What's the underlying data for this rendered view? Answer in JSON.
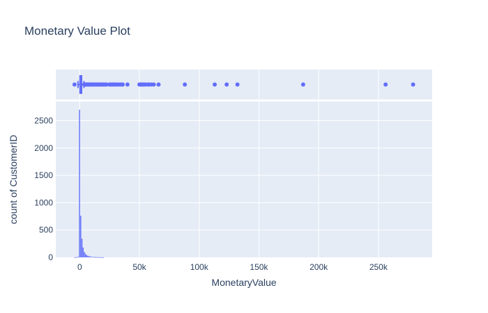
{
  "chart_data": {
    "type": "histogram",
    "title": "Monetary Value Plot",
    "xlabel": "MonetaryValue",
    "ylabel": "count of CustomerID",
    "xlim": [
      -20000,
      295000
    ],
    "ylim": [
      0,
      2850
    ],
    "x_ticks": [
      0,
      50000,
      100000,
      150000,
      200000,
      250000
    ],
    "x_tick_labels": [
      "0",
      "50k",
      "100k",
      "150k",
      "200k",
      "250k"
    ],
    "y_ticks": [
      0,
      500,
      1000,
      1500,
      2000,
      2500
    ],
    "y_tick_labels": [
      "0",
      "500",
      "1000",
      "1500",
      "2000",
      "2500"
    ],
    "grid": true,
    "color": "#636efa",
    "background": "#e5ecf6",
    "histogram": {
      "bins": [
        {
          "x0": -4500,
          "x1": -3500,
          "count": 1
        },
        {
          "x0": -3500,
          "x1": -2500,
          "count": 2
        },
        {
          "x0": -2500,
          "x1": -1500,
          "count": 4
        },
        {
          "x0": -1500,
          "x1": -500,
          "count": 12
        },
        {
          "x0": -500,
          "x1": 500,
          "count": 2700
        },
        {
          "x0": 500,
          "x1": 1500,
          "count": 760
        },
        {
          "x0": 1500,
          "x1": 2500,
          "count": 340
        },
        {
          "x0": 2500,
          "x1": 3500,
          "count": 180
        },
        {
          "x0": 3500,
          "x1": 4500,
          "count": 100
        },
        {
          "x0": 4500,
          "x1": 5500,
          "count": 65
        },
        {
          "x0": 5500,
          "x1": 6500,
          "count": 40
        },
        {
          "x0": 6500,
          "x1": 7500,
          "count": 28
        },
        {
          "x0": 7500,
          "x1": 8500,
          "count": 20
        },
        {
          "x0": 8500,
          "x1": 9500,
          "count": 15
        },
        {
          "x0": 9500,
          "x1": 10500,
          "count": 11
        },
        {
          "x0": 10500,
          "x1": 11500,
          "count": 9
        },
        {
          "x0": 11500,
          "x1": 12500,
          "count": 7
        },
        {
          "x0": 12500,
          "x1": 13500,
          "count": 6
        },
        {
          "x0": 13500,
          "x1": 14500,
          "count": 5
        },
        {
          "x0": 14500,
          "x1": 15500,
          "count": 4
        },
        {
          "x0": 15500,
          "x1": 16500,
          "count": 3
        },
        {
          "x0": 16500,
          "x1": 17500,
          "count": 3
        },
        {
          "x0": 17500,
          "x1": 18500,
          "count": 2
        },
        {
          "x0": 18500,
          "x1": 19500,
          "count": 2
        },
        {
          "x0": 19500,
          "x1": 20500,
          "count": 2
        }
      ]
    },
    "marginal_box": {
      "q1": 300,
      "median": 650,
      "q3": 1600,
      "lower_fence": -1400,
      "upper_fence": 3600,
      "outliers": [
        -4300,
        3800,
        4200,
        4600,
        5000,
        5500,
        6000,
        6500,
        7000,
        7500,
        8000,
        8600,
        9200,
        9800,
        10500,
        11200,
        12000,
        12800,
        13600,
        14500,
        15500,
        16500,
        17500,
        18500,
        19500,
        20500,
        21500,
        22500,
        25000,
        26000,
        27000,
        28000,
        29000,
        30000,
        31500,
        33000,
        34500,
        36000,
        40000,
        50000,
        51000,
        52000,
        53000,
        54000,
        55000,
        57000,
        58000,
        60000,
        62000,
        66000,
        88000,
        113000,
        123000,
        132000,
        187000,
        256000,
        279000
      ]
    }
  }
}
